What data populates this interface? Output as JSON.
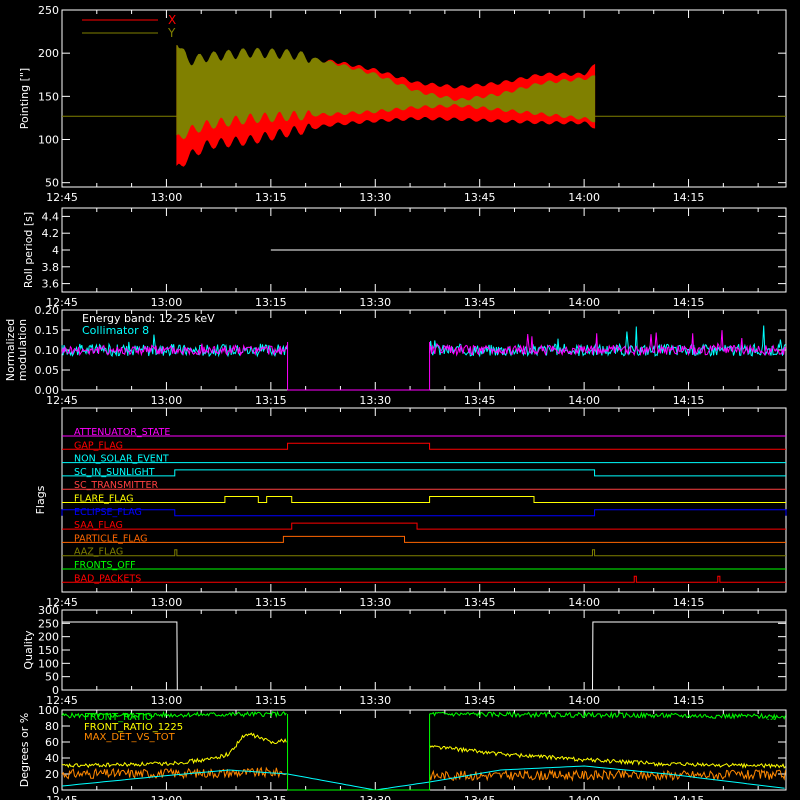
{
  "figure": {
    "background": "#000000",
    "axis_color": "#ffffff"
  },
  "time_axis": {
    "range_hours": [
      12.75,
      14.4833
    ],
    "ticks": [
      {
        "hour": 12.75,
        "label": "12:45"
      },
      {
        "hour": 13.0,
        "label": "13:00"
      },
      {
        "hour": 13.25,
        "label": "13:15"
      },
      {
        "hour": 13.5,
        "label": "13:30"
      },
      {
        "hour": 13.75,
        "label": "13:45"
      },
      {
        "hour": 14.0,
        "label": "14:00"
      },
      {
        "hour": 14.25,
        "label": "14:15"
      }
    ]
  },
  "chart_data": [
    {
      "id": "pointing",
      "type": "area",
      "ylabel": "Pointing [\"]",
      "ylim": [
        45,
        250
      ],
      "yticks": [
        50,
        100,
        150,
        200,
        250
      ],
      "legend": {
        "placement": "top-left",
        "entries": [
          {
            "name": "X",
            "color": "#ff0000"
          },
          {
            "name": "Y",
            "color": "#808000"
          }
        ]
      },
      "baseline": 127,
      "active_range": [
        13.025,
        14.025
      ],
      "series": [
        {
          "name": "X",
          "color": "#ff0000",
          "x": [
            13.025,
            13.05,
            13.1,
            13.2,
            13.3,
            13.4,
            13.5,
            13.6,
            13.7,
            13.8,
            13.9,
            14.0,
            14.025
          ],
          "upper": [
            215,
            150,
            160,
            180,
            190,
            190,
            180,
            165,
            160,
            165,
            175,
            175,
            185
          ],
          "lower": [
            65,
            80,
            95,
            100,
            110,
            118,
            122,
            125,
            124,
            122,
            120,
            120,
            115
          ]
        },
        {
          "name": "Y",
          "color": "#808000",
          "x": [
            13.025,
            13.05,
            13.1,
            13.2,
            13.3,
            13.4,
            13.5,
            13.6,
            13.7,
            13.8,
            13.9,
            14.0,
            14.025
          ],
          "upper": [
            215,
            190,
            195,
            200,
            198,
            188,
            175,
            155,
            145,
            152,
            165,
            170,
            172
          ],
          "lower": [
            100,
            110,
            118,
            125,
            128,
            130,
            133,
            138,
            140,
            135,
            130,
            125,
            122
          ]
        }
      ]
    },
    {
      "id": "roll",
      "type": "line",
      "ylabel": "Roll period [s]",
      "ylim": [
        3.5,
        4.5
      ],
      "yticks": [
        3.6,
        3.8,
        4.0,
        4.2,
        4.4
      ],
      "series": [
        {
          "name": "",
          "color": "#ffffff",
          "x": [
            13.25,
            14.4833
          ],
          "y": [
            4.0,
            4.0
          ]
        }
      ]
    },
    {
      "id": "modulation",
      "type": "line",
      "ylabel": [
        "Normalized",
        "modulation"
      ],
      "ylim": [
        0.0,
        0.2
      ],
      "yticks": [
        0.0,
        0.05,
        0.1,
        0.15,
        0.2
      ],
      "ytick_labels": [
        "0.00",
        "0.05",
        "0.10",
        "0.15",
        "0.20"
      ],
      "annotations": [
        "Energy band: 12-25 keV",
        "Collimator 8"
      ],
      "gap": [
        13.29,
        13.63
      ],
      "series": [
        {
          "name": "Collimator 8",
          "color": "#00ffff",
          "mean": 0.1,
          "spread": 0.015
        },
        {
          "name": "",
          "color": "#ff00ff",
          "mean": 0.1,
          "spread": 0.012
        }
      ]
    },
    {
      "id": "flags",
      "type": "line",
      "ylabel": "Flags",
      "flags": [
        {
          "label": "ATTENUATOR_STATE",
          "color": "#ff00ff",
          "on": []
        },
        {
          "label": "GAP_FLAG",
          "color": "#ff0000",
          "on": [
            [
              13.29,
              13.63
            ]
          ]
        },
        {
          "label": "NON_SOLAR_EVENT",
          "color": "#00ffff",
          "on": []
        },
        {
          "label": "SC_IN_SUNLIGHT",
          "color": "#00ffff",
          "on": [
            [
              13.02,
              14.025
            ]
          ]
        },
        {
          "label": "SC_TRANSMITTER",
          "color": "#ff4040",
          "on": []
        },
        {
          "label": "FLARE_FLAG",
          "color": "#ffff00",
          "on": [
            [
              13.14,
              13.22
            ],
            [
              13.24,
              13.3
            ],
            [
              13.63,
              13.88
            ]
          ]
        },
        {
          "label": "ECLIPSE_FLAG",
          "color": "#0000ff",
          "on": [
            [
              12.75,
              13.02
            ],
            [
              14.025,
              14.4833
            ]
          ]
        },
        {
          "label": "SAA_FLAG",
          "color": "#ff0000",
          "on": [
            [
              13.3,
              13.6
            ]
          ]
        },
        {
          "label": "PARTICLE_FLAG",
          "color": "#ff6600",
          "on": [
            [
              13.28,
              13.57
            ]
          ]
        },
        {
          "label": "AAZ_FLAG",
          "color": "#808000",
          "on": [
            [
              13.02,
              13.025
            ],
            [
              14.02,
              14.025
            ]
          ]
        },
        {
          "label": "FRONTS_OFF",
          "color": "#00ff00",
          "on": []
        },
        {
          "label": "BAD_PACKETS",
          "color": "#ff0000",
          "on": [
            [
              14.12,
              14.125
            ],
            [
              14.32,
              14.325
            ]
          ]
        }
      ]
    },
    {
      "id": "quality",
      "type": "line",
      "ylabel": "Quality",
      "ylim": [
        0,
        300
      ],
      "yticks": [
        0,
        50,
        100,
        150,
        200,
        250,
        300
      ],
      "series": [
        {
          "name": "",
          "color": "#ffffff",
          "x": [
            12.75,
            13.025,
            13.026,
            14.02,
            14.021,
            14.4833
          ],
          "y": [
            255,
            255,
            0,
            0,
            255,
            255
          ]
        }
      ]
    },
    {
      "id": "degrees",
      "type": "line",
      "ylabel": "Degrees or %",
      "ylim": [
        0,
        100
      ],
      "yticks": [
        0,
        20,
        40,
        60,
        80,
        100
      ],
      "legend": {
        "placement": "top-left",
        "entries": [
          {
            "name": "FRONT_RATIO",
            "color": "#00ff00"
          },
          {
            "name": "FRONT_RATIO_1225",
            "color": "#ffff00"
          },
          {
            "name": "MAX_DET_VS_TOT",
            "color": "#ff8800"
          }
        ]
      },
      "right_note": "...",
      "gap": [
        13.29,
        13.63
      ],
      "series": [
        {
          "name": "FRONT_RATIO",
          "color": "#00ff00",
          "x": [
            12.75,
            13.29,
            13.63,
            14.4833
          ],
          "y": [
            93,
            95,
            95,
            92
          ]
        },
        {
          "name": "FRONT_RATIO_1225",
          "color": "#ffff00",
          "x": [
            12.75,
            13.0,
            13.1,
            13.15,
            13.18,
            13.2,
            13.25,
            13.29,
            13.63,
            13.8,
            14.0,
            14.2,
            14.4833
          ],
          "y": [
            30,
            33,
            38,
            45,
            65,
            70,
            60,
            62,
            55,
            45,
            38,
            32,
            30
          ]
        },
        {
          "name": "MAX_DET_VS_TOT",
          "color": "#ff8800",
          "x": [
            12.75,
            13.29,
            13.63,
            14.4833
          ],
          "y": [
            20,
            22,
            18,
            19
          ]
        },
        {
          "name": "",
          "color": "#00ffff",
          "x": [
            12.75,
            13.0,
            13.15,
            13.29,
            13.5,
            13.63,
            13.8,
            14.0,
            14.2,
            14.4833
          ],
          "y": [
            5,
            18,
            25,
            20,
            0,
            10,
            25,
            30,
            20,
            2
          ]
        }
      ]
    }
  ]
}
